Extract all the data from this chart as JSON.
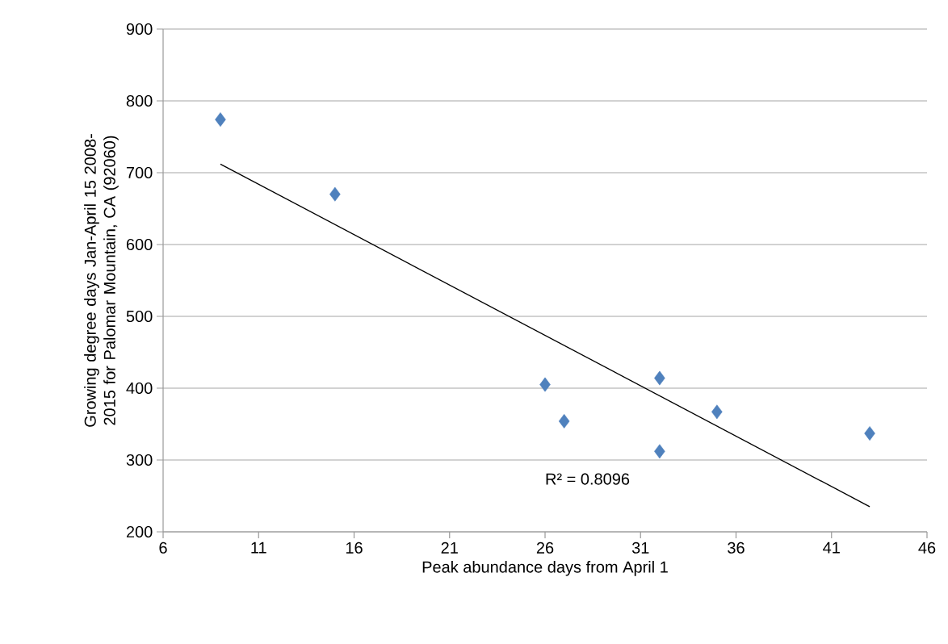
{
  "chart_data": {
    "type": "scatter",
    "xlabel": "Peak abundance days from April 1",
    "ylabel": "Growing degree days Jan-April 15 2008-2015 for Palomar Mountain, CA (92060)",
    "xlim": [
      6,
      46
    ],
    "xticks": [
      6,
      11,
      16,
      21,
      26,
      31,
      36,
      41,
      46
    ],
    "ylim": [
      200,
      900
    ],
    "yticks": [
      200,
      300,
      400,
      500,
      600,
      700,
      800,
      900
    ],
    "grid": "y",
    "marker": "diamond",
    "series": [
      {
        "color": "#4f81bd",
        "x": [
          9,
          15,
          26,
          27,
          32,
          32,
          35,
          43
        ],
        "values": [
          774,
          670,
          405,
          354,
          414,
          312,
          367,
          337
        ]
      },
      {
        "type": "line",
        "color": "#000000",
        "marker": "none",
        "x": [
          9,
          43
        ],
        "values": [
          712,
          235
        ]
      }
    ],
    "annotations": [
      "R² = 0.8096"
    ]
  }
}
